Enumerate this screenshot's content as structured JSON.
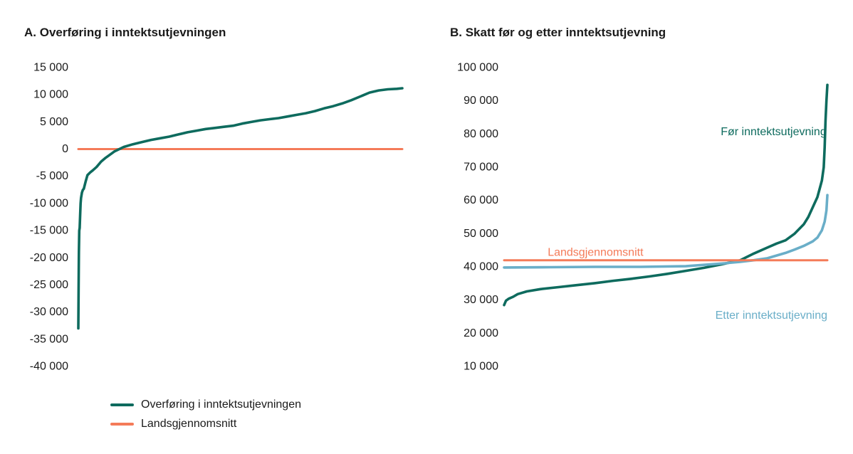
{
  "colors": {
    "teal": "#0e6b5e",
    "orange": "#f47b59",
    "lightblue": "#6aaec8"
  },
  "legend": [
    {
      "label": "Overføring i inntektsutjevningen",
      "color": "#0e6b5e"
    },
    {
      "label": "Landsgjennomsnitt",
      "color": "#f47b59"
    }
  ],
  "chart_data": [
    {
      "type": "line",
      "title": "A.  Overføring i inntektsutjevningen",
      "ylim": [
        -40000,
        15000
      ],
      "yticks": [
        {
          "value": 15000,
          "label": "15 000"
        },
        {
          "value": 10000,
          "label": "10 000"
        },
        {
          "value": 5000,
          "label": "5 000"
        },
        {
          "value": 0,
          "label": "0"
        },
        {
          "value": -5000,
          "label": "-5 000"
        },
        {
          "value": -10000,
          "label": "-10 000"
        },
        {
          "value": -15000,
          "label": "-15 000"
        },
        {
          "value": -20000,
          "label": "-20 000"
        },
        {
          "value": -25000,
          "label": "-25 000"
        },
        {
          "value": -30000,
          "label": "-30 000"
        },
        {
          "value": -35000,
          "label": "-35 000"
        },
        {
          "value": -40000,
          "label": "-40 000"
        }
      ],
      "grid": false,
      "legend_position": "bottom-left",
      "series": [
        {
          "name": "Overføring i inntektsutjevningen",
          "color": "#0e6b5e",
          "x": [
            0,
            0.3,
            0.6,
            1,
            1.5,
            2,
            2.5,
            3,
            4,
            5,
            6,
            8,
            10,
            13,
            16,
            20,
            25,
            30,
            40,
            50,
            60,
            70,
            80,
            90,
            100,
            110,
            120,
            130,
            140,
            150,
            160,
            170,
            180,
            190,
            200,
            210,
            220,
            230,
            240,
            250,
            260,
            270,
            280,
            290,
            300,
            310,
            320,
            330,
            340,
            350,
            356
          ],
          "y": [
            -33000,
            -25500,
            -19000,
            -15000,
            -14500,
            -12000,
            -10000,
            -9000,
            -8000,
            -7500,
            -7300,
            -6000,
            -4800,
            -4300,
            -3900,
            -3300,
            -2300,
            -1600,
            -400,
            400,
            900,
            1300,
            1700,
            2000,
            2300,
            2700,
            3100,
            3400,
            3700,
            3900,
            4100,
            4300,
            4700,
            5000,
            5300,
            5500,
            5700,
            6000,
            6300,
            6600,
            7000,
            7500,
            7900,
            8400,
            9000,
            9700,
            10400,
            10800,
            11000,
            11100,
            11200
          ]
        },
        {
          "name": "Landsgjennomsnitt",
          "color": "#f47b59",
          "x": [
            0,
            356
          ],
          "y": [
            0,
            0
          ]
        }
      ]
    },
    {
      "type": "line",
      "title": "B.  Skatt før og etter inntektsutjevning",
      "ylim": [
        10000,
        100000
      ],
      "yticks": [
        {
          "value": 100000,
          "label": "100 000"
        },
        {
          "value": 90000,
          "label": "90 000"
        },
        {
          "value": 80000,
          "label": "80 000"
        },
        {
          "value": 70000,
          "label": "70 000"
        },
        {
          "value": 60000,
          "label": "60 000"
        },
        {
          "value": 50000,
          "label": "50 000"
        },
        {
          "value": 40000,
          "label": "40 000"
        },
        {
          "value": 30000,
          "label": "30 000"
        },
        {
          "value": 20000,
          "label": "20 000"
        },
        {
          "value": 10000,
          "label": "10 000"
        }
      ],
      "grid": false,
      "annotations": [
        {
          "text": "Før inntektsutjevning",
          "color": "#0e6b5e",
          "x": 355,
          "y": 80600,
          "anchor": "end"
        },
        {
          "text": "Landsgjennomsnitt",
          "color": "#f47b59",
          "x": 48,
          "y": 44300,
          "anchor": "start"
        },
        {
          "text": "Etter inntektsutjevning",
          "color": "#6aaec8",
          "x": 356,
          "y": 25300,
          "anchor": "end"
        }
      ],
      "series": [
        {
          "name": "Før inntektsutjevning",
          "color": "#0e6b5e",
          "x": [
            0,
            2,
            5,
            10,
            15,
            25,
            40,
            60,
            80,
            100,
            120,
            140,
            160,
            180,
            200,
            220,
            240,
            260,
            275,
            290,
            300,
            310,
            320,
            330,
            335,
            340,
            345,
            348,
            350,
            352,
            353,
            354,
            355,
            356
          ],
          "y": [
            28500,
            29800,
            30400,
            31000,
            31800,
            32600,
            33300,
            33900,
            34500,
            35100,
            35800,
            36400,
            37100,
            37900,
            38800,
            39700,
            40800,
            42000,
            44000,
            45800,
            47000,
            48000,
            50000,
            52800,
            55000,
            58000,
            61000,
            64000,
            66000,
            70000,
            76000,
            84000,
            90000,
            94800
          ]
        },
        {
          "name": "Etter inntektsutjevning",
          "color": "#6aaec8",
          "x": [
            0,
            50,
            100,
            150,
            200,
            220,
            240,
            260,
            275,
            290,
            300,
            310,
            320,
            330,
            340,
            345,
            350,
            353,
            355,
            356
          ],
          "y": [
            39800,
            39900,
            40000,
            40000,
            40200,
            40600,
            41000,
            41500,
            42000,
            42600,
            43400,
            44200,
            45200,
            46300,
            47700,
            48800,
            51000,
            53600,
            57000,
            61600
          ]
        },
        {
          "name": "Landsgjennomsnitt",
          "color": "#f47b59",
          "x": [
            0,
            356
          ],
          "y": [
            42000,
            42000
          ]
        }
      ]
    }
  ]
}
